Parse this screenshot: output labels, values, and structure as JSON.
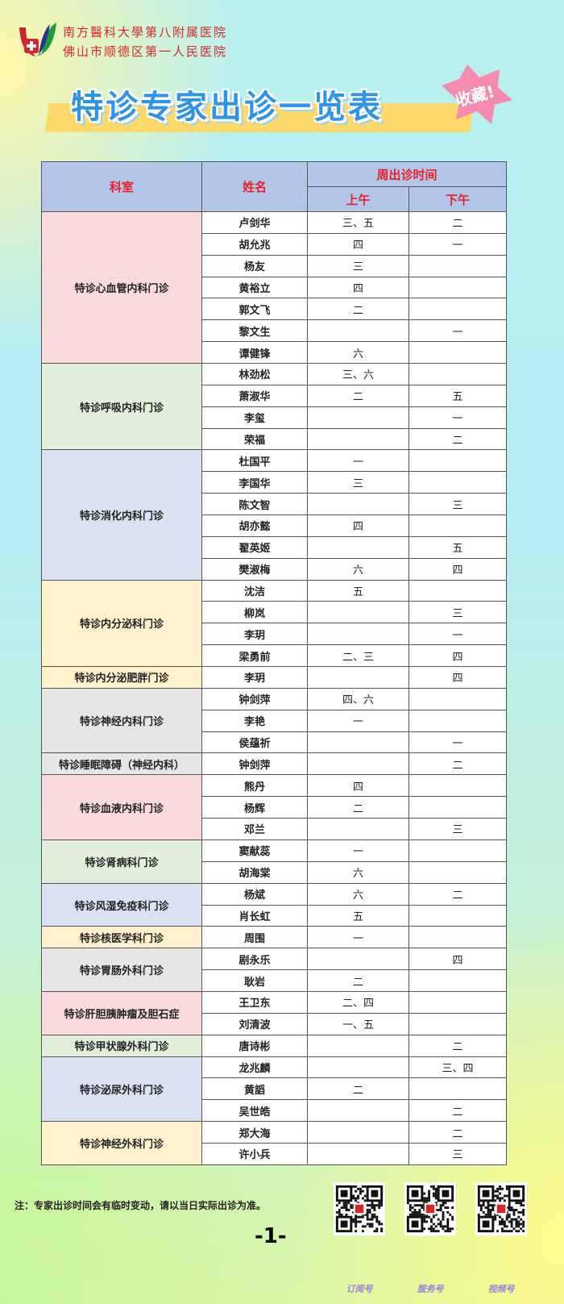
{
  "header": {
    "hospital_line1": "南方醫科大學第八附属医院",
    "hospital_line2": "佛山市顺德区第一人民医院",
    "title": "特诊专家出诊一览表",
    "badge": "收藏!"
  },
  "table": {
    "col_dept": "科室",
    "col_name": "姓名",
    "col_week": "周出诊时间",
    "col_am": "上午",
    "col_pm": "下午",
    "colors": {
      "pink": "#fadadd",
      "green": "#e2efda",
      "blue": "#d9e1f2",
      "yellow": "#fff2cc",
      "gray": "#e7e6e6"
    },
    "departments": [
      {
        "name": "特诊心血管内科门诊",
        "color": "pink",
        "doctors": [
          {
            "name": "卢剑华",
            "am": "三、五",
            "pm": "二"
          },
          {
            "name": "胡允兆",
            "am": "四",
            "pm": "一"
          },
          {
            "name": "杨友",
            "am": "三",
            "pm": ""
          },
          {
            "name": "黄裕立",
            "am": "四",
            "pm": ""
          },
          {
            "name": "郭文飞",
            "am": "二",
            "pm": ""
          },
          {
            "name": "黎文生",
            "am": "",
            "pm": "一"
          },
          {
            "name": "谭健锋",
            "am": "六",
            "pm": ""
          }
        ]
      },
      {
        "name": "特诊呼吸内科门诊",
        "color": "green",
        "doctors": [
          {
            "name": "林劲松",
            "am": "三、六",
            "pm": ""
          },
          {
            "name": "萧淑华",
            "am": "二",
            "pm": "五"
          },
          {
            "name": "李玺",
            "am": "",
            "pm": "一"
          },
          {
            "name": "荣福",
            "am": "",
            "pm": "二"
          }
        ]
      },
      {
        "name": "特诊消化内科门诊",
        "color": "blue",
        "doctors": [
          {
            "name": "杜国平",
            "am": "一",
            "pm": ""
          },
          {
            "name": "李国华",
            "am": "三",
            "pm": ""
          },
          {
            "name": "陈文智",
            "am": "",
            "pm": "三"
          },
          {
            "name": "胡亦懿",
            "am": "四",
            "pm": ""
          },
          {
            "name": "翟英姬",
            "am": "",
            "pm": "五"
          },
          {
            "name": "樊淑梅",
            "am": "六",
            "pm": "四"
          }
        ]
      },
      {
        "name": "特诊内分泌科门诊",
        "color": "yellow",
        "doctors": [
          {
            "name": "沈洁",
            "am": "五",
            "pm": ""
          },
          {
            "name": "柳岚",
            "am": "",
            "pm": "三"
          },
          {
            "name": "李玥",
            "am": "",
            "pm": "一"
          },
          {
            "name": "梁勇前",
            "am": "二、三",
            "pm": "四"
          }
        ]
      },
      {
        "name": "特诊内分泌肥胖门诊",
        "color": "yellow",
        "doctors": [
          {
            "name": "李玥",
            "am": "",
            "pm": "四"
          }
        ]
      },
      {
        "name": "特诊神经内科门诊",
        "color": "gray",
        "doctors": [
          {
            "name": "钟剑萍",
            "am": "四、六",
            "pm": ""
          },
          {
            "name": "李艳",
            "am": "一",
            "pm": ""
          },
          {
            "name": "侯蕴祈",
            "am": "",
            "pm": "一"
          }
        ]
      },
      {
        "name": "特诊睡眠障碍（神经内科）",
        "color": "gray",
        "doctors": [
          {
            "name": "钟剑萍",
            "am": "",
            "pm": "二"
          }
        ]
      },
      {
        "name": "特诊血液内科门诊",
        "color": "pink",
        "doctors": [
          {
            "name": "熊丹",
            "am": "四",
            "pm": ""
          },
          {
            "name": "杨辉",
            "am": "二",
            "pm": ""
          },
          {
            "name": "邓兰",
            "am": "",
            "pm": "三"
          }
        ]
      },
      {
        "name": "特诊肾病科门诊",
        "color": "green",
        "doctors": [
          {
            "name": "窦献蕊",
            "am": "一",
            "pm": ""
          },
          {
            "name": "胡海棠",
            "am": "六",
            "pm": ""
          }
        ]
      },
      {
        "name": "特诊风湿免疫科门诊",
        "color": "blue",
        "doctors": [
          {
            "name": "杨斌",
            "am": "六",
            "pm": "二"
          },
          {
            "name": "肖长虹",
            "am": "五",
            "pm": ""
          }
        ]
      },
      {
        "name": "特诊核医学科门诊",
        "color": "yellow",
        "doctors": [
          {
            "name": "周围",
            "am": "一",
            "pm": ""
          }
        ]
      },
      {
        "name": "特诊胃肠外科门诊",
        "color": "gray",
        "doctors": [
          {
            "name": "剧永乐",
            "am": "",
            "pm": "四"
          },
          {
            "name": "耿岩",
            "am": "二",
            "pm": ""
          }
        ]
      },
      {
        "name": "特诊肝胆胰肿瘤及胆石症",
        "color": "pink",
        "doctors": [
          {
            "name": "王卫东",
            "am": "二、四",
            "pm": ""
          },
          {
            "name": "刘清波",
            "am": "一、五",
            "pm": ""
          }
        ]
      },
      {
        "name": "特诊甲状腺外科门诊",
        "color": "green",
        "doctors": [
          {
            "name": "唐诗彬",
            "am": "",
            "pm": "二"
          }
        ]
      },
      {
        "name": "特诊泌尿外科门诊",
        "color": "blue",
        "doctors": [
          {
            "name": "龙兆麟",
            "am": "",
            "pm": "三、四"
          },
          {
            "name": "黄謟",
            "am": "二",
            "pm": ""
          },
          {
            "name": "吴世皓",
            "am": "",
            "pm": "二"
          }
        ]
      },
      {
        "name": "特诊神经外科门诊",
        "color": "yellow",
        "doctors": [
          {
            "name": "郑大海",
            "am": "",
            "pm": "二"
          },
          {
            "name": "许小兵",
            "am": "",
            "pm": "三"
          }
        ]
      }
    ]
  },
  "footer": {
    "note": "注：专家出诊时间会有临时变动，请以当日实际出诊为准。",
    "page": "-1-",
    "qr_codes": [
      {
        "label": "订阅号"
      },
      {
        "label": "服务号"
      },
      {
        "label": "视频号"
      }
    ]
  }
}
